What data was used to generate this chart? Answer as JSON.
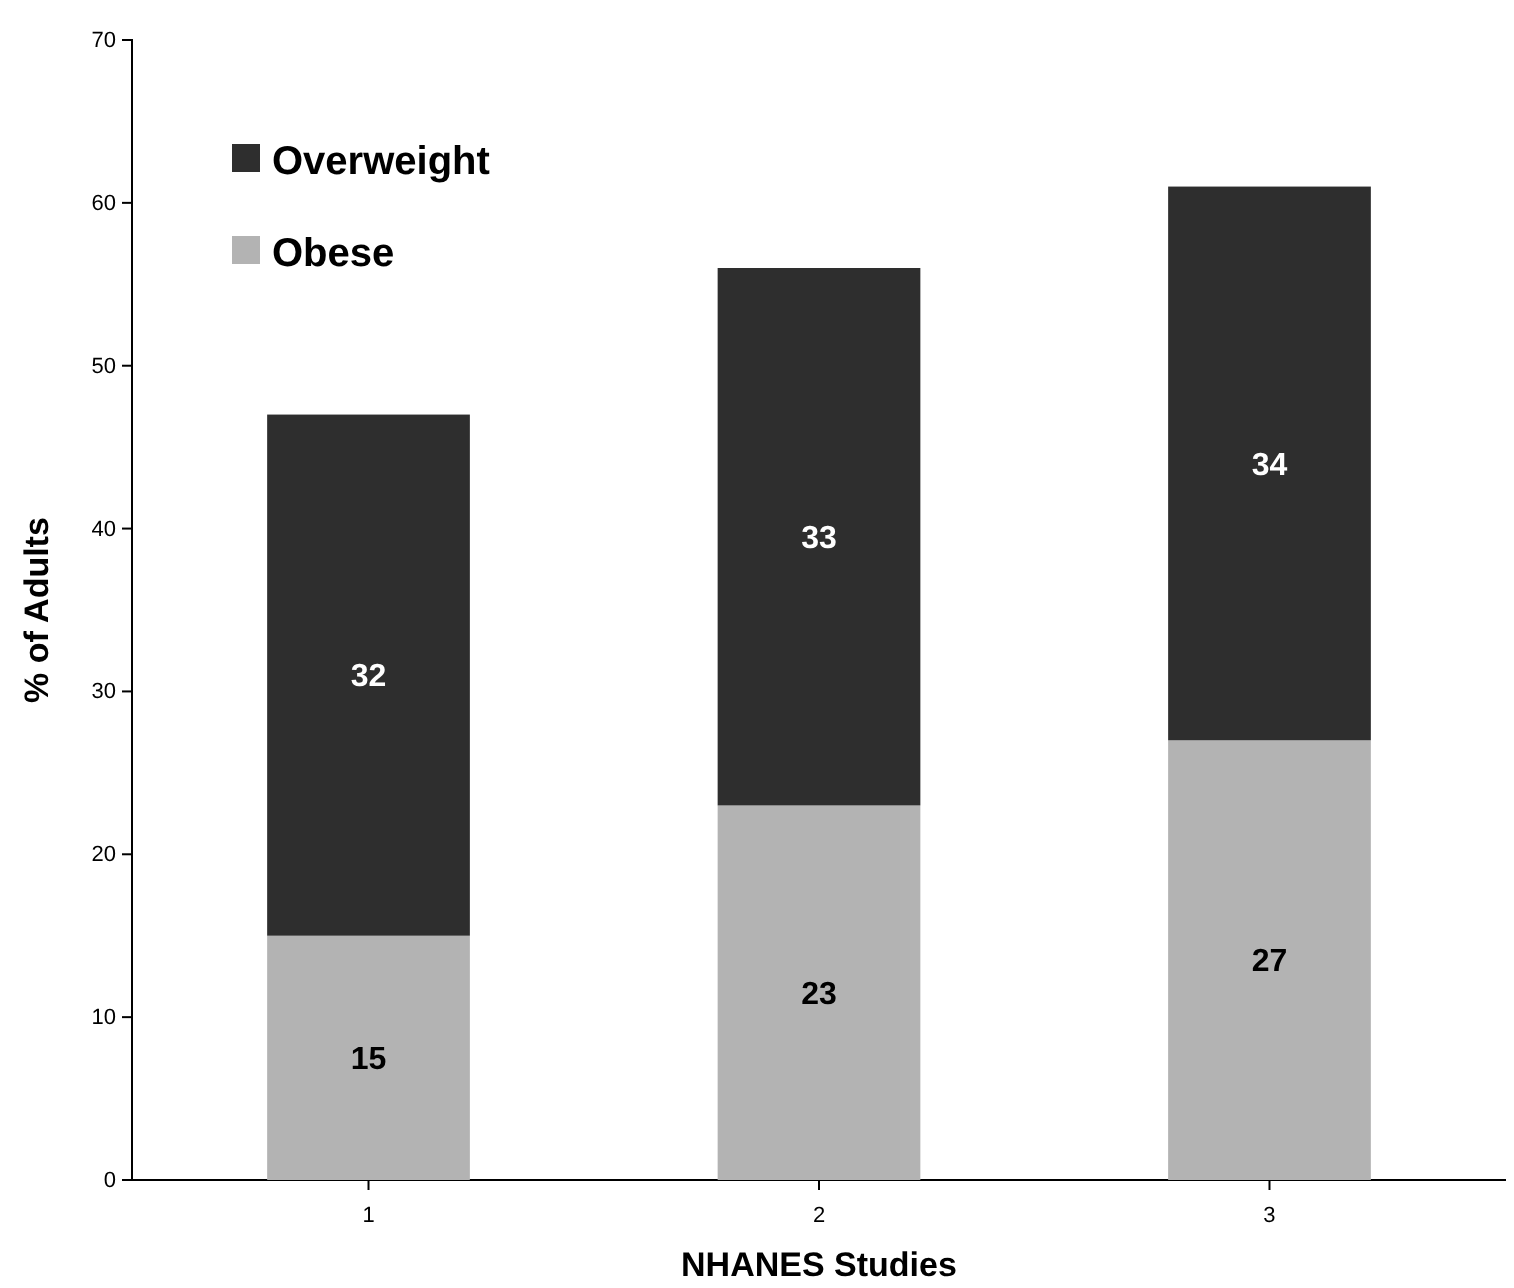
{
  "chart_data": {
    "type": "bar",
    "stacked": true,
    "xlabel": "NHANES Studies",
    "ylabel": "% of Adults",
    "categories": [
      "1",
      "2",
      "3"
    ],
    "series": [
      {
        "name": "Obese",
        "color": "#b3b3b3",
        "values": [
          15,
          23,
          27
        ]
      },
      {
        "name": "Overweight",
        "color": "#2e2e2e",
        "values": [
          32,
          33,
          34
        ]
      }
    ],
    "ylim": [
      0,
      70
    ],
    "yticks": [
      0,
      10,
      20,
      30,
      40,
      50,
      60,
      70
    ],
    "data_labels": true,
    "legend": "top left",
    "grid": false
  }
}
